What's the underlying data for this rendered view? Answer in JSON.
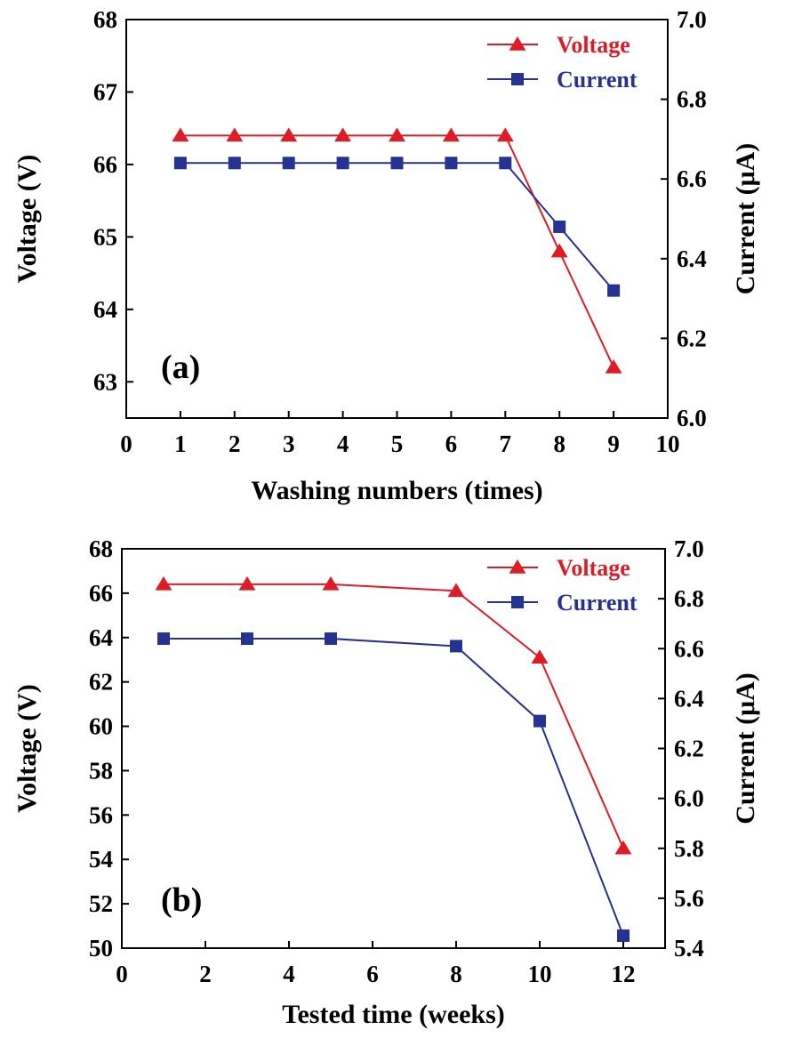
{
  "colors": {
    "voltage": "#dd1c26",
    "current": "#263291",
    "axis": "#000000"
  },
  "chart_data": [
    {
      "type": "line",
      "panel_label": "(a)",
      "xlabel": "Washing numbers (times)",
      "ylabel_left": "Voltage (V)",
      "ylabel_right": "Current (μA)",
      "xlim": [
        0,
        10
      ],
      "ylim_left": [
        62.5,
        68
      ],
      "ylim_right": [
        6.0,
        7.0
      ],
      "x_ticks": [
        0,
        1,
        2,
        3,
        4,
        5,
        6,
        7,
        8,
        9,
        10
      ],
      "x_tick_labels": [
        "0",
        "1",
        "2",
        "3",
        "4",
        "5",
        "6",
        "7",
        "8",
        "9",
        "10"
      ],
      "y_left_ticks": [
        63,
        64,
        65,
        66,
        67,
        68
      ],
      "y_left_tick_labels": [
        "63",
        "64",
        "65",
        "66",
        "67",
        "68"
      ],
      "y_right_ticks": [
        6.0,
        6.2,
        6.4,
        6.6,
        6.8,
        7.0
      ],
      "y_right_tick_labels": [
        "6.0",
        "6.2",
        "6.4",
        "6.6",
        "6.8",
        "7.0"
      ],
      "legend_position": "top-right",
      "x": [
        1,
        2,
        3,
        4,
        5,
        6,
        7,
        8,
        9
      ],
      "series": [
        {
          "name": "Voltage",
          "axis": "left",
          "marker": "triangle",
          "values": [
            66.4,
            66.4,
            66.4,
            66.4,
            66.4,
            66.4,
            66.4,
            64.8,
            63.2
          ]
        },
        {
          "name": "Current",
          "axis": "right",
          "marker": "square",
          "values": [
            6.64,
            6.64,
            6.64,
            6.64,
            6.64,
            6.64,
            6.64,
            6.48,
            6.32
          ]
        }
      ]
    },
    {
      "type": "line",
      "panel_label": "(b)",
      "xlabel": "Tested time (weeks)",
      "ylabel_left": "Voltage (V)",
      "ylabel_right": "Current (μA)",
      "xlim": [
        0,
        13
      ],
      "ylim_left": [
        50,
        68
      ],
      "ylim_right": [
        5.4,
        7.0
      ],
      "x_ticks": [
        0,
        2,
        4,
        6,
        8,
        10,
        12
      ],
      "x_tick_labels": [
        "0",
        "2",
        "4",
        "6",
        "8",
        "10",
        "12"
      ],
      "y_left_ticks": [
        50,
        52,
        54,
        56,
        58,
        60,
        62,
        64,
        66,
        68
      ],
      "y_left_tick_labels": [
        "50",
        "52",
        "54",
        "56",
        "58",
        "60",
        "62",
        "64",
        "66",
        "68"
      ],
      "y_right_ticks": [
        5.4,
        5.6,
        5.8,
        6.0,
        6.2,
        6.4,
        6.6,
        6.8,
        7.0
      ],
      "y_right_tick_labels": [
        "5.4",
        "5.6",
        "5.8",
        "6.0",
        "6.2",
        "6.4",
        "6.6",
        "6.8",
        "7.0"
      ],
      "legend_position": "top-right",
      "x": [
        1,
        3,
        5,
        8,
        10,
        12
      ],
      "series": [
        {
          "name": "Voltage",
          "axis": "left",
          "marker": "triangle",
          "values": [
            66.4,
            66.4,
            66.4,
            66.1,
            63.1,
            54.5
          ]
        },
        {
          "name": "Current",
          "axis": "right",
          "marker": "square",
          "values": [
            6.64,
            6.64,
            6.64,
            6.61,
            6.31,
            5.45
          ]
        }
      ]
    }
  ]
}
